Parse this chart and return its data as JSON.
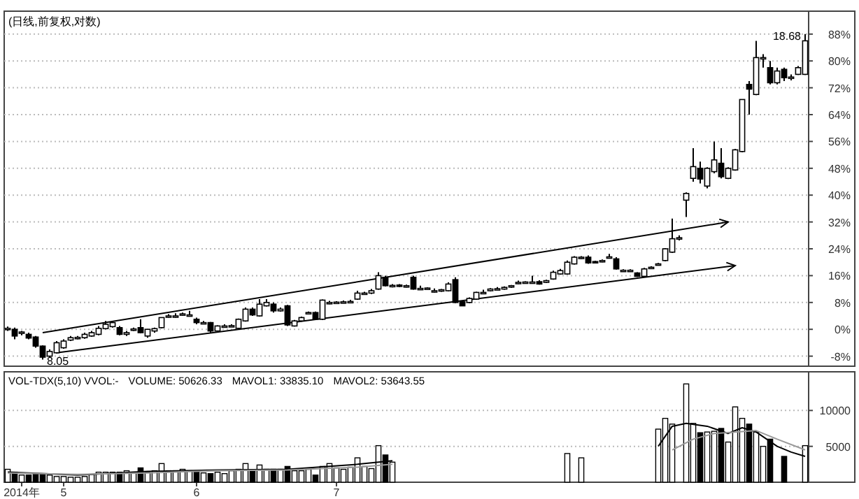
{
  "chart_data": [
    {
      "type": "candlestick",
      "title": "(日线,前复权,对数)",
      "tick_labels": "y",
      "grid": "y",
      "ylim": [
        -11,
        94
      ],
      "yticks": [
        {
          "value": -8,
          "label": "-8%"
        },
        {
          "value": 0,
          "label": "0%"
        },
        {
          "value": 8,
          "label": "8%"
        },
        {
          "value": 16,
          "label": "16%"
        },
        {
          "value": 24,
          "label": "24%"
        },
        {
          "value": 32,
          "label": "32%"
        },
        {
          "value": 40,
          "label": "40%"
        },
        {
          "value": 48,
          "label": "48%"
        },
        {
          "value": 56,
          "label": "56%"
        },
        {
          "value": 64,
          "label": "64%"
        },
        {
          "value": 72,
          "label": "72%"
        },
        {
          "value": 80,
          "label": "80%"
        },
        {
          "value": 88,
          "label": "88%"
        }
      ],
      "categories": [
        null,
        null,
        null,
        null,
        null,
        null,
        null,
        null,
        null,
        null,
        null,
        null,
        null,
        null,
        null,
        null,
        null,
        null,
        null,
        null,
        null,
        null,
        null,
        null,
        null,
        null,
        null,
        null,
        null,
        null,
        null,
        null,
        null,
        null,
        null,
        null,
        null,
        null,
        null,
        null,
        null,
        null,
        null,
        null,
        null,
        null,
        null,
        null,
        null,
        null,
        null,
        null,
        null,
        null,
        null,
        null,
        null,
        null,
        null,
        null,
        null,
        null,
        null,
        null,
        null,
        null,
        null,
        null,
        null,
        null,
        null,
        null,
        null,
        null,
        null,
        null,
        null,
        null,
        null,
        null,
        null,
        null,
        null,
        null,
        null,
        null,
        null,
        null,
        null,
        null,
        null,
        null,
        null,
        null,
        null,
        null,
        null,
        null,
        null,
        null,
        null,
        null,
        null,
        null,
        null,
        null,
        null,
        null,
        null,
        null,
        null,
        null,
        null,
        null,
        null
      ],
      "ohlc": [
        [
          0,
          0.8,
          -0.5,
          0.3
        ],
        [
          0,
          0.5,
          -3,
          -2
        ],
        [
          -1.2,
          -0.5,
          -1.8,
          -0.8
        ],
        [
          -1.5,
          -1,
          -3,
          -2.6
        ],
        [
          -2.3,
          -2,
          -5.5,
          -5
        ],
        [
          -5,
          -4.8,
          -9,
          -8.3
        ],
        [
          -8,
          -6,
          -8.5,
          -6.6
        ],
        [
          -7,
          -3.5,
          -7.2,
          -4
        ],
        [
          -5.5,
          -3,
          -5.8,
          -3.5
        ],
        [
          -3.2,
          -2,
          -3.5,
          -2.5
        ],
        [
          -2.5,
          -2,
          -3,
          -2.4
        ],
        [
          -2.5,
          -1,
          -2.8,
          -1.5
        ],
        [
          -2,
          -0.5,
          -2.2,
          -1
        ],
        [
          -1.5,
          1,
          -1.8,
          0.3
        ],
        [
          0.2,
          2.5,
          0,
          1.5
        ],
        [
          0.8,
          2.5,
          0.5,
          2
        ],
        [
          0.5,
          1,
          -1.8,
          -1.5
        ],
        [
          -1.5,
          -0.5,
          -2,
          -1
        ],
        [
          0,
          0.5,
          -0.5,
          0.1
        ],
        [
          0.5,
          3,
          -1.2,
          -1
        ],
        [
          -2,
          0,
          -2.5,
          0
        ],
        [
          -0.5,
          0.5,
          -1,
          0.2
        ],
        [
          0.5,
          3.5,
          0.3,
          3.5
        ],
        [
          3.8,
          4.5,
          3.5,
          4
        ],
        [
          4,
          4.8,
          3.5,
          4
        ],
        [
          4.2,
          5,
          4,
          4.6
        ],
        [
          4.3,
          5.5,
          3.8,
          4.3
        ],
        [
          3,
          3.5,
          1.5,
          2
        ],
        [
          2,
          2.5,
          1.5,
          2
        ],
        [
          2,
          2.2,
          -1,
          -0.5
        ],
        [
          -0.5,
          1.2,
          -1,
          1
        ],
        [
          1,
          1.5,
          0.5,
          1
        ],
        [
          1,
          1.5,
          0.8,
          1.1
        ],
        [
          0.3,
          3.2,
          0,
          3
        ],
        [
          2.5,
          6.5,
          2.3,
          6
        ],
        [
          6,
          6.5,
          4,
          4.3
        ],
        [
          4,
          9,
          3.8,
          7.5
        ],
        [
          7,
          9,
          6.8,
          8
        ],
        [
          7.5,
          8,
          5,
          5.5
        ],
        [
          5.5,
          6.5,
          5.3,
          6
        ],
        [
          7,
          7.3,
          1,
          1.3
        ],
        [
          1,
          2.8,
          0.8,
          2.5
        ],
        [
          2.5,
          3.8,
          2.3,
          3.5
        ],
        [
          4.8,
          5.3,
          4.6,
          5
        ],
        [
          5,
          5.3,
          2.8,
          3
        ],
        [
          3,
          8.9,
          2.8,
          8.7
        ],
        [
          7.8,
          8.5,
          7.5,
          8
        ],
        [
          8,
          8.4,
          7.7,
          8.1
        ],
        [
          8.1,
          8.6,
          7.9,
          8.2
        ],
        [
          8.2,
          8.8,
          8,
          8.3
        ],
        [
          9,
          11.5,
          8.8,
          10.8
        ],
        [
          10.6,
          11.2,
          10.3,
          10.8
        ],
        [
          10.8,
          12,
          10.5,
          11.5
        ],
        [
          12,
          17,
          11.8,
          16
        ],
        [
          15.5,
          16,
          12.8,
          13
        ],
        [
          13,
          13.5,
          12.5,
          13.1
        ],
        [
          13.2,
          13.5,
          12.6,
          12.8
        ],
        [
          12.8,
          13.3,
          12.5,
          13
        ],
        [
          15.5,
          16,
          11.8,
          12
        ],
        [
          12.2,
          13,
          11.8,
          12.2
        ],
        [
          12,
          12.5,
          11.8,
          12.3
        ],
        [
          11.5,
          12.2,
          11,
          11.5
        ],
        [
          11.6,
          12,
          11.2,
          11.8
        ],
        [
          11.5,
          14,
          11.3,
          13.5
        ],
        [
          14.8,
          15.5,
          7.8,
          8
        ],
        [
          8.2,
          8.5,
          7,
          7
        ],
        [
          8,
          9.5,
          7.8,
          9.2
        ],
        [
          9,
          11.2,
          8.8,
          11
        ],
        [
          11,
          11.8,
          10.5,
          11
        ],
        [
          11.5,
          12.3,
          11.3,
          12
        ],
        [
          12,
          12.6,
          11.7,
          12.1
        ],
        [
          12,
          12.8,
          11.8,
          12.5
        ],
        [
          12.6,
          13.2,
          12.4,
          13
        ],
        [
          13.8,
          14.5,
          13.5,
          14
        ],
        [
          14,
          14.3,
          13.7,
          14.1
        ],
        [
          14,
          16,
          13.8,
          14.1
        ],
        [
          14.2,
          14.6,
          13.3,
          13.5
        ],
        [
          14,
          14.8,
          13.8,
          14.5
        ],
        [
          15,
          17.5,
          14.8,
          17
        ],
        [
          16.5,
          18,
          16.3,
          17.5
        ],
        [
          16.5,
          20.5,
          16.3,
          20
        ],
        [
          19.5,
          21.8,
          19.3,
          21.5
        ],
        [
          21.3,
          21.8,
          21,
          21.5
        ],
        [
          21.5,
          22,
          19.5,
          19.8
        ],
        [
          20.2,
          20.4,
          19.8,
          20
        ],
        [
          20.2,
          20.8,
          20,
          20.5
        ],
        [
          21.5,
          22.5,
          21.2,
          21.6
        ],
        [
          21,
          21.5,
          17.8,
          18
        ],
        [
          17.5,
          17.9,
          17.2,
          17.6
        ],
        [
          17.6,
          17.9,
          17.2,
          17.6
        ],
        [
          16.8,
          17,
          15.6,
          15.8
        ],
        [
          15.8,
          18.3,
          15.6,
          18
        ],
        [
          18.2,
          18.8,
          18,
          18.5
        ],
        [
          19.2,
          19.8,
          19,
          19.5
        ],
        [
          20.5,
          24.2,
          20.3,
          24
        ],
        [
          23,
          33,
          22.8,
          27
        ],
        [
          27.2,
          28,
          26.5,
          27.3
        ],
        [
          38.5,
          40.8,
          33.5,
          40.5
        ],
        [
          45,
          54,
          44,
          48.5
        ],
        [
          48,
          50,
          43.5,
          44.8
        ],
        [
          42.7,
          48.3,
          42,
          48
        ],
        [
          47,
          56,
          46.5,
          50.5
        ],
        [
          49.5,
          54,
          45,
          45.5
        ],
        [
          45,
          48.3,
          44.8,
          48
        ],
        [
          47.5,
          53.8,
          47.3,
          53.5
        ],
        [
          53,
          68.5,
          52.8,
          68.5
        ],
        [
          73,
          74,
          64,
          71.6
        ],
        [
          70,
          86,
          69.8,
          81
        ],
        [
          80.8,
          82,
          78,
          81
        ],
        [
          78,
          80,
          73,
          73.5
        ],
        [
          73.5,
          78,
          73,
          77
        ],
        [
          77.5,
          78,
          74,
          75
        ],
        [
          75,
          76,
          74.2,
          75.2
        ],
        [
          76,
          78.5,
          75.8,
          78
        ],
        [
          76,
          88,
          75.8,
          86
        ]
      ],
      "series": [
        {
          "type": "line",
          "color": "#000000",
          "values": [
            null,
            null,
            null,
            null,
            null,
            -1,
            null,
            null,
            null,
            null,
            null,
            null,
            null,
            null,
            null,
            null,
            null,
            null,
            null,
            null,
            null,
            null,
            null,
            null,
            null,
            null,
            null,
            null,
            null,
            null,
            null,
            null,
            null,
            null,
            null,
            null,
            null,
            null,
            null,
            null,
            null,
            null,
            null,
            null,
            null,
            null,
            null,
            null,
            null,
            null,
            null,
            null,
            null,
            null,
            null,
            null,
            null,
            null,
            null,
            null,
            null,
            null,
            null,
            null,
            null,
            null,
            null,
            null,
            null,
            null,
            null,
            null,
            null,
            null,
            null,
            null,
            null,
            null,
            null,
            null,
            null,
            null,
            null,
            null,
            null,
            null,
            null,
            null,
            null,
            null,
            null,
            null,
            null,
            null,
            null,
            null,
            null,
            null,
            null,
            null,
            null,
            null,
            null,
            32,
            null,
            null,
            null,
            null,
            null,
            null,
            null,
            null,
            null,
            null,
            null
          ]
        },
        {
          "type": "line",
          "color": "#000000",
          "values": [
            null,
            null,
            null,
            null,
            null,
            null,
            null,
            -7,
            null,
            null,
            null,
            null,
            null,
            null,
            null,
            null,
            null,
            null,
            null,
            null,
            null,
            null,
            null,
            null,
            null,
            null,
            null,
            null,
            null,
            null,
            null,
            null,
            null,
            null,
            null,
            null,
            null,
            null,
            null,
            null,
            null,
            null,
            null,
            null,
            null,
            null,
            null,
            null,
            null,
            null,
            null,
            null,
            null,
            null,
            null,
            null,
            null,
            null,
            null,
            null,
            null,
            null,
            null,
            null,
            null,
            null,
            null,
            null,
            null,
            null,
            null,
            null,
            null,
            null,
            null,
            null,
            null,
            null,
            null,
            null,
            null,
            null,
            null,
            null,
            null,
            null,
            null,
            null,
            null,
            null,
            null,
            null,
            null,
            null,
            null,
            null,
            null,
            null,
            null,
            null,
            null,
            null,
            null,
            null,
            19,
            null,
            null,
            null,
            null,
            null,
            null,
            null,
            null,
            null,
            null
          ]
        }
      ],
      "annotations": [
        {
          "text": "8.05",
          "y": -9
        },
        "18.68"
      ]
    },
    {
      "type": "bar",
      "grid": "y",
      "ylim": [
        0,
        15000
      ],
      "yticks": [
        5000,
        10000
      ],
      "categories": [
        null,
        null,
        "2014年",
        null,
        null,
        null,
        null,
        null,
        "5",
        null,
        null,
        null,
        null,
        null,
        null,
        null,
        null,
        null,
        null,
        null,
        null,
        null,
        null,
        null,
        null,
        null,
        null,
        "6",
        null,
        null,
        null,
        null,
        null,
        null,
        null,
        null,
        null,
        null,
        null,
        null,
        null,
        null,
        null,
        null,
        null,
        null,
        null,
        "7",
        null,
        null,
        null,
        null,
        null,
        null,
        null,
        null,
        null,
        null,
        null,
        null,
        null,
        null,
        null,
        null,
        null,
        null,
        null,
        null,
        null,
        null,
        null,
        null,
        null,
        null,
        null,
        null,
        null,
        null,
        null,
        null,
        null,
        null,
        null,
        null,
        null,
        null,
        null,
        null,
        null,
        null,
        null,
        null,
        null,
        null,
        null,
        null,
        null,
        null,
        null,
        null,
        null,
        null,
        null,
        null,
        null,
        null,
        null,
        null,
        null,
        null,
        null,
        null,
        null,
        null,
        null
      ],
      "annotations": [
        "VOL-TDX(5,10) VVOL:-",
        "VOLUME: 50626.33",
        "MAVOL1: 33835.10",
        "MAVOL2: 53643.55"
      ],
      "series": [
        {
          "type": "bar",
          "values": [
            1800,
            1400,
            1000,
            1000,
            1200,
            1100,
            1000,
            800,
            800,
            700,
            700,
            800,
            1100,
            1400,
            1400,
            1400,
            1400,
            1600,
            1400,
            2000,
            1400,
            1600,
            2600,
            1600,
            1600,
            1800,
            1600,
            1400,
            1300,
            1200,
            1400,
            1200,
            1600,
            1800,
            2600,
            1600,
            2400,
            1800,
            1800,
            1800,
            2200,
            1600,
            1600,
            1800,
            1000,
            2200,
            2600,
            2000,
            1800,
            2100,
            3400,
            2200,
            1900,
            5100,
            3800,
            2800,
            null,
            null,
            null,
            null,
            null,
            null,
            null,
            null,
            null,
            null,
            null,
            null,
            null,
            null,
            null,
            null,
            null,
            null,
            null,
            null,
            null,
            null,
            null,
            null,
            4000,
            null,
            3400,
            null,
            null,
            null,
            null,
            null,
            null,
            null,
            null,
            null,
            null,
            7400,
            8900,
            8100,
            null,
            13700,
            8200,
            6900,
            7000,
            7100,
            7500,
            5600,
            10500,
            8900,
            8100,
            7000,
            5000,
            6000,
            null,
            3600,
            null,
            null,
            5100
          ],
          "colors": [
            "#ffffff",
            "#000000",
            "#ffffff",
            "#000000",
            "#000000",
            "#000000",
            "#ffffff",
            "#ffffff",
            "#ffffff",
            "#ffffff",
            "#ffffff",
            "#ffffff",
            "#ffffff",
            "#ffffff",
            "#ffffff",
            "#ffffff",
            "#000000",
            "#ffffff",
            "#ffffff",
            "#000000",
            "#ffffff",
            "#ffffff",
            "#ffffff",
            "#ffffff",
            "#ffffff",
            "#ffffff",
            "#ffffff",
            "#000000",
            "#ffffff",
            "#000000",
            "#ffffff",
            "#ffffff",
            "#ffffff",
            "#ffffff",
            "#ffffff",
            "#000000",
            "#ffffff",
            "#ffffff",
            "#000000",
            "#ffffff",
            "#000000",
            "#ffffff",
            "#ffffff",
            "#ffffff",
            "#000000",
            "#ffffff",
            "#ffffff",
            "#ffffff",
            "#ffffff",
            "#ffffff",
            "#ffffff",
            "#ffffff",
            "#ffffff",
            "#ffffff",
            "#000000",
            "#ffffff",
            null,
            null,
            null,
            null,
            null,
            null,
            null,
            null,
            null,
            null,
            null,
            null,
            null,
            null,
            null,
            null,
            null,
            null,
            null,
            null,
            null,
            null,
            null,
            null,
            "#ffffff",
            null,
            "#ffffff",
            null,
            null,
            null,
            null,
            null,
            null,
            null,
            null,
            null,
            null,
            "#ffffff",
            "#ffffff",
            "#ffffff",
            null,
            "#ffffff",
            "#ffffff",
            "#000000",
            "#ffffff",
            "#ffffff",
            "#000000",
            "#ffffff",
            "#ffffff",
            "#ffffff",
            "#000000",
            "#ffffff",
            "#ffffff",
            "#000000",
            null,
            "#000000",
            null,
            null,
            "#ffffff"
          ]
        },
        {
          "type": "line",
          "color": "#000000",
          "values": [
            1400,
            null,
            null,
            null,
            null,
            null,
            null,
            null,
            null,
            null,
            1000,
            null,
            null,
            null,
            null,
            null,
            null,
            null,
            null,
            null,
            1500,
            null,
            null,
            null,
            null,
            null,
            null,
            null,
            null,
            null,
            1700,
            null,
            null,
            null,
            null,
            null,
            null,
            null,
            null,
            null,
            1800,
            null,
            null,
            null,
            null,
            null,
            null,
            null,
            null,
            null,
            2500,
            null,
            null,
            null,
            null,
            3000,
            null,
            null,
            null,
            null,
            null,
            null,
            null,
            null,
            null,
            null,
            null,
            null,
            null,
            null,
            null,
            null,
            null,
            null,
            null,
            null,
            null,
            null,
            null,
            null,
            null,
            null,
            null,
            null,
            null,
            null,
            null,
            null,
            null,
            null,
            null,
            null,
            null,
            null,
            null,
            null,
            null,
            null,
            null,
            null,
            null,
            null,
            null,
            null,
            null,
            null,
            null,
            null,
            null,
            null,
            null,
            null,
            null,
            null,
            null
          ]
        },
        {
          "type": "line",
          "color": "#000000",
          "values": [
            null,
            null,
            null,
            null,
            null,
            null,
            null,
            null,
            null,
            null,
            null,
            null,
            null,
            null,
            null,
            null,
            null,
            null,
            null,
            null,
            null,
            null,
            null,
            null,
            null,
            null,
            null,
            null,
            null,
            null,
            null,
            null,
            null,
            null,
            null,
            null,
            null,
            null,
            null,
            null,
            null,
            null,
            null,
            null,
            null,
            null,
            null,
            null,
            null,
            null,
            null,
            null,
            null,
            null,
            null,
            null,
            null,
            null,
            null,
            null,
            null,
            null,
            null,
            null,
            null,
            null,
            null,
            null,
            null,
            null,
            null,
            null,
            null,
            null,
            null,
            null,
            null,
            null,
            null,
            null,
            null,
            null,
            null,
            null,
            null,
            null,
            null,
            null,
            null,
            null,
            null,
            null,
            null,
            5000,
            null,
            7800,
            null,
            8200,
            null,
            null,
            7800,
            null,
            null,
            6800,
            null,
            7600,
            null,
            7000,
            null,
            null,
            5000,
            null,
            4200,
            null,
            3600
          ]
        },
        {
          "type": "line",
          "color": "#999999",
          "values": [
            1300,
            null,
            null,
            null,
            null,
            null,
            null,
            null,
            null,
            null,
            1100,
            null,
            null,
            null,
            null,
            null,
            null,
            null,
            null,
            null,
            1300,
            null,
            null,
            null,
            null,
            null,
            null,
            null,
            null,
            null,
            1600,
            null,
            null,
            null,
            null,
            null,
            null,
            null,
            null,
            null,
            1700,
            null,
            null,
            null,
            null,
            null,
            null,
            null,
            null,
            null,
            2100,
            null,
            null,
            null,
            null,
            2500,
            null,
            null,
            null,
            null,
            null,
            null,
            null,
            null,
            null,
            null,
            null,
            null,
            null,
            null,
            null,
            null,
            null,
            null,
            null,
            null,
            null,
            null,
            null,
            null,
            null,
            null,
            null,
            null,
            null,
            null,
            null,
            null,
            null,
            null,
            null,
            null,
            null,
            null,
            null,
            null,
            null,
            null,
            null,
            null,
            null,
            null,
            null,
            null,
            null,
            null,
            null,
            null,
            null,
            null,
            null,
            null,
            null,
            null,
            null
          ]
        },
        {
          "type": "line",
          "color": "#999999",
          "values": [
            null,
            null,
            null,
            null,
            null,
            null,
            null,
            null,
            null,
            null,
            null,
            null,
            null,
            null,
            null,
            null,
            null,
            null,
            null,
            null,
            null,
            null,
            null,
            null,
            null,
            null,
            null,
            null,
            null,
            null,
            null,
            null,
            null,
            null,
            null,
            null,
            null,
            null,
            null,
            null,
            null,
            null,
            null,
            null,
            null,
            null,
            null,
            null,
            null,
            null,
            null,
            null,
            null,
            null,
            null,
            null,
            null,
            null,
            null,
            null,
            null,
            null,
            null,
            null,
            null,
            null,
            null,
            null,
            null,
            null,
            null,
            null,
            null,
            null,
            null,
            null,
            null,
            null,
            null,
            null,
            null,
            null,
            null,
            null,
            null,
            null,
            null,
            null,
            null,
            null,
            null,
            null,
            null,
            null,
            null,
            4500,
            null,
            null,
            6000,
            null,
            null,
            6800,
            null,
            null,
            7000,
            null,
            null,
            7200,
            null,
            null,
            6000,
            null,
            null,
            null,
            4500
          ]
        }
      ]
    }
  ]
}
